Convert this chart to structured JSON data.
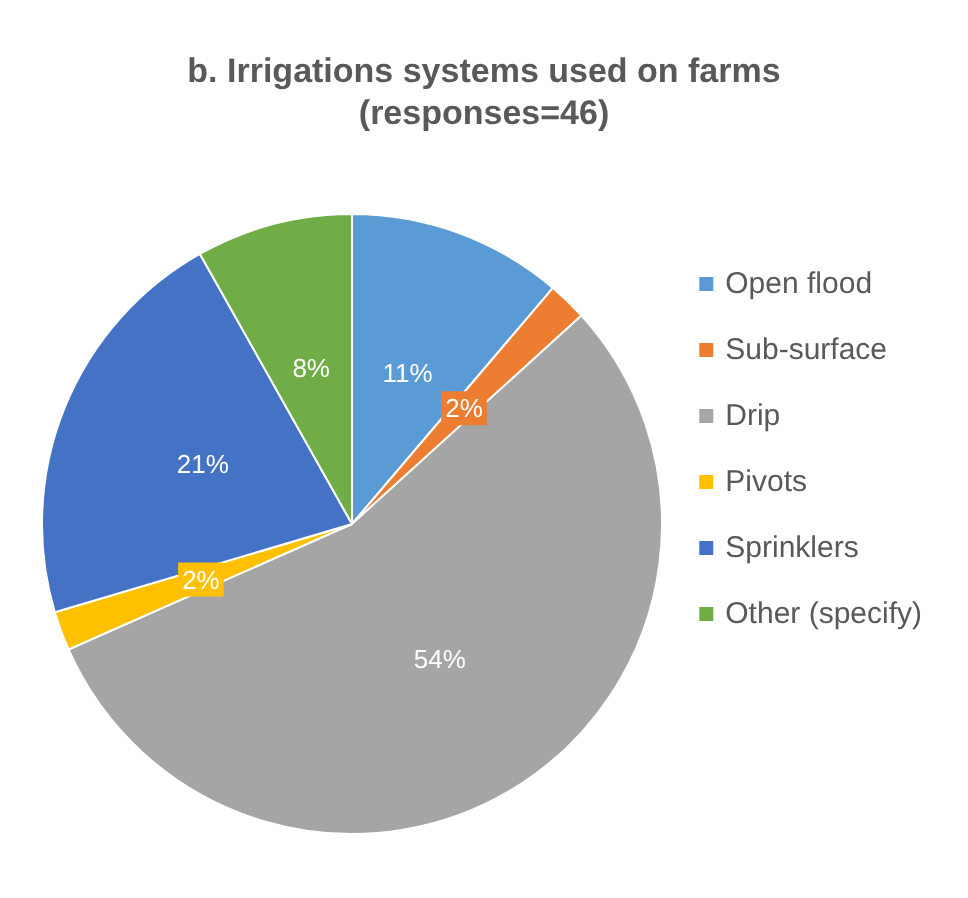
{
  "chart_data": {
    "type": "pie",
    "title": "b. Irrigations systems used on farms",
    "subtitle": "(responses=46)",
    "categories": [
      "Open flood",
      "Sub-surface",
      "Drip",
      "Pivots",
      "Sprinklers",
      "Other (specify)"
    ],
    "values": [
      11,
      2,
      54,
      2,
      21,
      8
    ],
    "colors": [
      "#5b9bd5",
      "#ed7d31",
      "#a5a5a5",
      "#ffc000",
      "#4472c4",
      "#70ad47"
    ],
    "value_labels": [
      "11%",
      "2%",
      "54%",
      "2%",
      "21%",
      "8%"
    ],
    "legend": "right"
  }
}
